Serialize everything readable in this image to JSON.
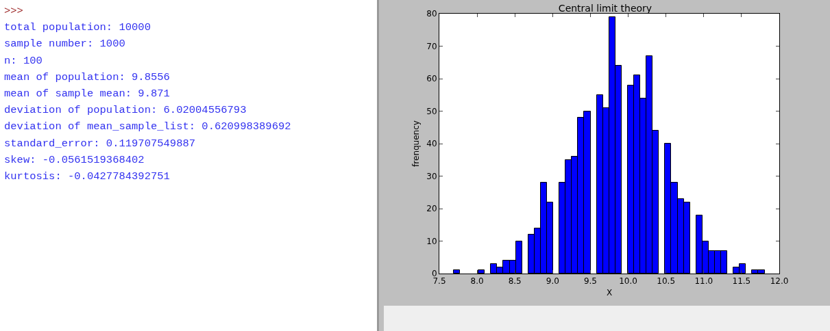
{
  "chart_data": {
    "type": "histogram",
    "title": "Central limit theory",
    "xlabel": "X",
    "ylabel": "frenquency",
    "bins": [
      7.69,
      7.772,
      7.855,
      7.937,
      8.019,
      8.102,
      8.184,
      8.266,
      8.348,
      8.431,
      8.513,
      8.595,
      8.678,
      8.76,
      8.842,
      8.925,
      9.007,
      9.089,
      9.171,
      9.254,
      9.336,
      9.418,
      9.501,
      9.583,
      9.665,
      9.748,
      9.83,
      9.912,
      9.994,
      10.077,
      10.159,
      10.241,
      10.324,
      10.406,
      10.488,
      10.571,
      10.653,
      10.735,
      10.817,
      10.9,
      10.982,
      11.064,
      11.147,
      11.229,
      11.311,
      11.394,
      11.476,
      11.558,
      11.64,
      11.723,
      11.805
    ],
    "values": [
      1,
      0,
      0,
      0,
      1,
      0,
      3,
      2,
      4,
      4,
      10,
      0,
      12,
      14,
      28,
      22,
      0,
      28,
      35,
      36,
      48,
      50,
      0,
      55,
      51,
      79,
      64,
      0,
      58,
      61,
      54,
      67,
      44,
      0,
      40,
      28,
      23,
      22,
      0,
      18,
      10,
      7,
      7,
      7,
      0,
      2,
      3,
      0,
      1,
      1
    ],
    "color": "#0000ff",
    "xlim": [
      7.5,
      12.0
    ],
    "xticks": [
      {
        "value": 7.5,
        "label": "7.5"
      },
      {
        "value": 8.0,
        "label": "8.0"
      },
      {
        "value": 8.5,
        "label": "8.5"
      },
      {
        "value": 9.0,
        "label": "9.0"
      },
      {
        "value": 9.5,
        "label": "9.5"
      },
      {
        "value": 10.0,
        "label": "10.0"
      },
      {
        "value": 10.5,
        "label": "10.5"
      },
      {
        "value": 11.0,
        "label": "11.0"
      },
      {
        "value": 11.5,
        "label": "11.5"
      },
      {
        "value": 12.0,
        "label": "12.0"
      }
    ],
    "ylim": [
      0,
      80
    ],
    "yticks": [
      0,
      10,
      20,
      30,
      40,
      50,
      60,
      70,
      80
    ],
    "grid": false,
    "legend": false,
    "annotations": [
      ">>>",
      "total population: 10000",
      "sample number: 1000",
      "n: 100",
      "mean of population: 9.8556",
      "mean of sample mean: 9.871",
      "deviation of population: 6.02004556793",
      "deviation of mean_sample_list: 0.620998389692",
      "standard_error: 0.119707549887",
      "skew: -0.0561519368402",
      "kurtosis: -0.0427784392751"
    ]
  }
}
